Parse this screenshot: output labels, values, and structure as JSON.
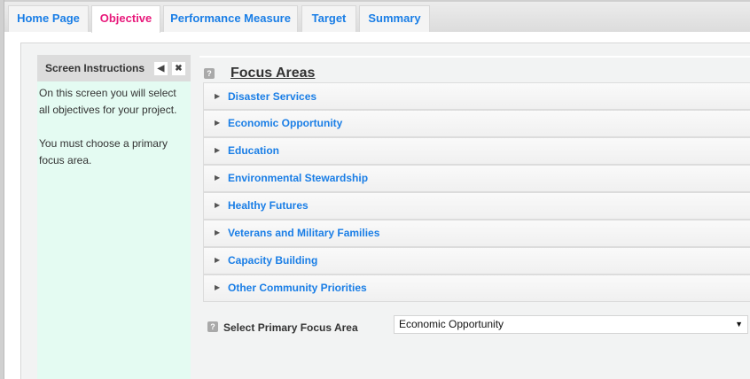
{
  "tabs": [
    {
      "label": "Home Page"
    },
    {
      "label": "Objective",
      "active": true
    },
    {
      "label": "Performance Measure"
    },
    {
      "label": "Target"
    },
    {
      "label": "Summary"
    }
  ],
  "instructions": {
    "title": "Screen Instructions",
    "paragraphs": [
      "On this screen you will select all objectives for your project.",
      "You must choose a primary focus area."
    ],
    "collapse_icon": "triangle-left",
    "close_icon": "x"
  },
  "focus": {
    "title": "Focus Areas",
    "help": "?",
    "items": [
      "Disaster Services",
      "Economic Opportunity",
      "Education",
      "Environmental Stewardship",
      "Healthy Futures",
      "Veterans and Military Families",
      "Capacity Building",
      "Other Community Priorities"
    ]
  },
  "primary": {
    "label": "Select Primary Focus Area",
    "help": "?",
    "value": "Economic Opportunity"
  },
  "colors": {
    "tab_text": "#1a7ee6",
    "active_tab": "#e8197b",
    "instructions_bg": "#e4fbf2"
  }
}
